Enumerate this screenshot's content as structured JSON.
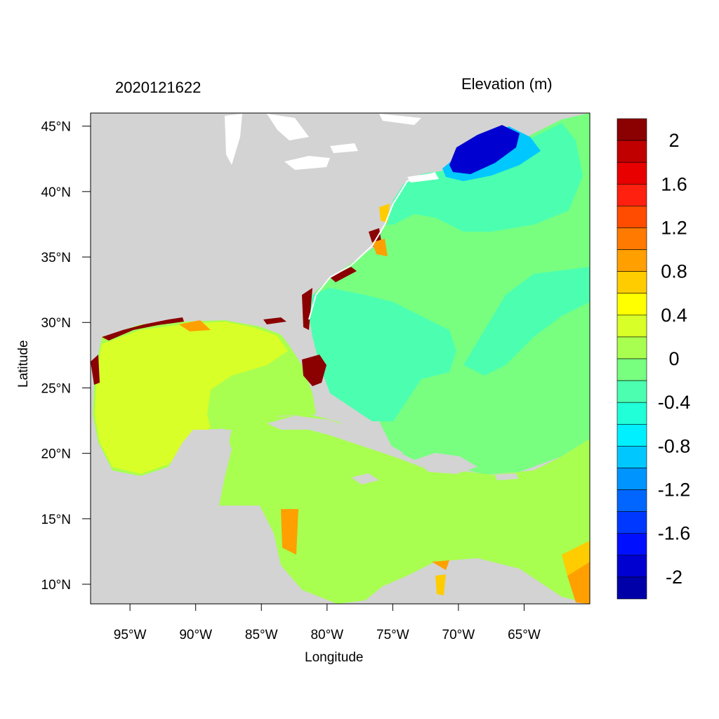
{
  "map": {
    "title_left": "2020121622",
    "title_right": "Elevation (m)",
    "xlabel": "Longitude",
    "ylabel": "Latitude",
    "lon_ticks": [
      "95°W",
      "90°W",
      "85°W",
      "80°W",
      "75°W",
      "70°W",
      "65°W"
    ],
    "lat_ticks": [
      "45°N",
      "40°N",
      "35°N",
      "30°N",
      "25°N",
      "20°N",
      "15°N",
      "10°N"
    ],
    "lon_range": [
      -98,
      -60
    ],
    "lat_range": [
      8.5,
      46
    ]
  },
  "colorbar": {
    "tick_labels": [
      "2",
      "1.6",
      "1.2",
      "0.8",
      "0.4",
      "0",
      "-0.4",
      "-0.8",
      "-1.2",
      "-1.6",
      "-2"
    ],
    "colors": [
      "#8b0000",
      "#c00000",
      "#e80000",
      "#ff2010",
      "#ff4c00",
      "#ff7a00",
      "#ffa000",
      "#ffcc00",
      "#ffff00",
      "#d8ff28",
      "#a8ff50",
      "#78ff80",
      "#4cffb0",
      "#20ffd8",
      "#00f0ff",
      "#00c8ff",
      "#0094ff",
      "#0066ff",
      "#0038ff",
      "#0010ff",
      "#0000d0",
      "#0000a8"
    ]
  },
  "colors": {
    "land": "#d3d3d3",
    "water_white": "#ffffff",
    "gulf_interior": "#d8ff28",
    "caribbean": "#a8ff50",
    "atlantic": "#78ff80",
    "shelf": "#4cffb0",
    "gulf_of_maine": "#0000d0"
  }
}
